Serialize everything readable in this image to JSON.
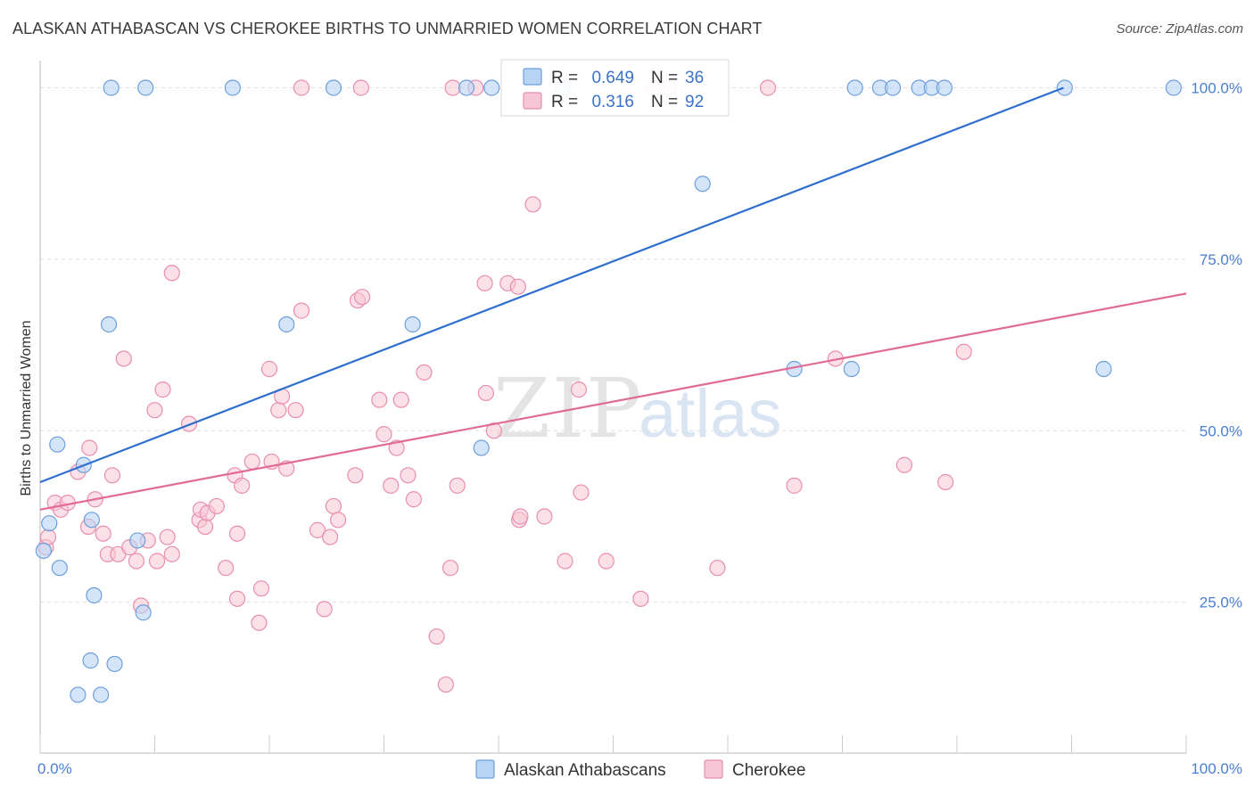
{
  "header": {
    "title": "ALASKAN ATHABASCAN VS CHEROKEE BIRTHS TO UNMARRIED WOMEN CORRELATION CHART",
    "source": "Source: ZipAtlas.com"
  },
  "watermark": {
    "zip": "ZIP",
    "atlas": "atlas"
  },
  "colors": {
    "blue_fill": "#b8d4f5",
    "blue_stroke": "#6e9fdc",
    "blue_line": "#2f6fce",
    "pink_fill": "#f7c6d6",
    "pink_stroke": "#e88fac",
    "pink_line": "#e06b96",
    "grid": "#dddddd",
    "tick_text": "#4a7fd0"
  },
  "chart_data": {
    "type": "scatter",
    "title": "ALASKAN ATHABASCAN VS CHEROKEE BIRTHS TO UNMARRIED WOMEN CORRELATION CHART",
    "ylabel": "Births to Unmarried Women",
    "xlabel": "",
    "xlim": [
      0,
      100
    ],
    "ylim": [
      3,
      105
    ],
    "x_tick_labels": [
      "0.0%",
      "100.0%"
    ],
    "y_ticks": [
      25,
      50,
      75,
      100
    ],
    "y_tick_labels": [
      "25.0%",
      "50.0%",
      "75.0%",
      "100.0%"
    ],
    "grid": "horizontal dashed",
    "legend": {
      "placement": "top-center",
      "entries": [
        {
          "r_label": "R =",
          "r_value": "0.649",
          "n_label": "N =",
          "n_value": "36"
        },
        {
          "r_label": "R =",
          "r_value": "0.316",
          "n_label": "N =",
          "n_value": "92"
        }
      ]
    },
    "bottom_legend": [
      "Alaskan Athabascans",
      "Cherokee"
    ],
    "series": [
      {
        "name": "Alaskan Athabascans",
        "trendline": [
          [
            0,
            42.5
          ],
          [
            89.3,
            100
          ]
        ],
        "points": [
          [
            0.3,
            32.5
          ],
          [
            0.8,
            36.5
          ],
          [
            1.5,
            48
          ],
          [
            1.7,
            30
          ],
          [
            3.8,
            45
          ],
          [
            4.5,
            37
          ],
          [
            4.7,
            26
          ],
          [
            4.4,
            16.5
          ],
          [
            3.3,
            11.5
          ],
          [
            5.3,
            11.5
          ],
          [
            6.5,
            16
          ],
          [
            8.5,
            34
          ],
          [
            9.0,
            23.5
          ],
          [
            6.0,
            65.5
          ],
          [
            21.5,
            65.5
          ],
          [
            32.5,
            65.5
          ],
          [
            38.5,
            47.5
          ],
          [
            57.8,
            86
          ],
          [
            65.8,
            59
          ],
          [
            70.8,
            59
          ],
          [
            92.8,
            59
          ],
          [
            6.2,
            100
          ],
          [
            9.2,
            100
          ],
          [
            16.8,
            100
          ],
          [
            25.6,
            100
          ],
          [
            37.2,
            100
          ],
          [
            39.4,
            100
          ],
          [
            45.6,
            100
          ],
          [
            71.1,
            100
          ],
          [
            73.3,
            100
          ],
          [
            74.4,
            100
          ],
          [
            76.7,
            100
          ],
          [
            77.8,
            100
          ],
          [
            78.9,
            100
          ],
          [
            89.4,
            100
          ],
          [
            98.9,
            100
          ]
        ]
      },
      {
        "name": "Cherokee",
        "trendline": [
          [
            0,
            38.5
          ],
          [
            100,
            70
          ]
        ],
        "points": [
          [
            0.5,
            33
          ],
          [
            0.7,
            34.5
          ],
          [
            1.3,
            39.5
          ],
          [
            1.8,
            38.5
          ],
          [
            2.4,
            39.5
          ],
          [
            3.3,
            44
          ],
          [
            4.2,
            36
          ],
          [
            4.3,
            47.5
          ],
          [
            4.8,
            40
          ],
          [
            5.5,
            35
          ],
          [
            5.9,
            32
          ],
          [
            6.3,
            43.5
          ],
          [
            6.8,
            32
          ],
          [
            7.3,
            60.5
          ],
          [
            7.8,
            33
          ],
          [
            8.4,
            31
          ],
          [
            8.8,
            24.5
          ],
          [
            9.4,
            34
          ],
          [
            10.0,
            53
          ],
          [
            10.2,
            31
          ],
          [
            10.7,
            56
          ],
          [
            11.1,
            34.5
          ],
          [
            11.5,
            32
          ],
          [
            11.5,
            73
          ],
          [
            13.0,
            51
          ],
          [
            13.9,
            37
          ],
          [
            14.0,
            38.5
          ],
          [
            14.4,
            36
          ],
          [
            14.6,
            38
          ],
          [
            15.4,
            39
          ],
          [
            16.2,
            30
          ],
          [
            17.0,
            43.5
          ],
          [
            17.2,
            25.5
          ],
          [
            17.6,
            42
          ],
          [
            18.5,
            45.5
          ],
          [
            19.1,
            22
          ],
          [
            19.3,
            27
          ],
          [
            20.0,
            59
          ],
          [
            20.2,
            45.5
          ],
          [
            20.8,
            53
          ],
          [
            21.1,
            55
          ],
          [
            21.5,
            44.5
          ],
          [
            22.3,
            53
          ],
          [
            22.8,
            67.5
          ],
          [
            24.2,
            35.5
          ],
          [
            24.8,
            24
          ],
          [
            25.3,
            34.5
          ],
          [
            25.6,
            39
          ],
          [
            26.0,
            37
          ],
          [
            27.5,
            43.5
          ],
          [
            27.7,
            69
          ],
          [
            28.1,
            69.5
          ],
          [
            29.6,
            54.5
          ],
          [
            30.0,
            49.5
          ],
          [
            30.6,
            42
          ],
          [
            31.1,
            47.5
          ],
          [
            31.5,
            54.5
          ],
          [
            32.1,
            43.5
          ],
          [
            32.6,
            40
          ],
          [
            33.5,
            58.5
          ],
          [
            34.6,
            20
          ],
          [
            35.4,
            13
          ],
          [
            35.8,
            30
          ],
          [
            36.4,
            42
          ],
          [
            38.0,
            100
          ],
          [
            38.8,
            71.5
          ],
          [
            38.9,
            55.5
          ],
          [
            39.6,
            50
          ],
          [
            40.8,
            71.5
          ],
          [
            41.7,
            71
          ],
          [
            41.8,
            37
          ],
          [
            41.9,
            37.5
          ],
          [
            43.0,
            83
          ],
          [
            44.0,
            37.5
          ],
          [
            45.8,
            31
          ],
          [
            47.0,
            56
          ],
          [
            47.2,
            41
          ],
          [
            49.4,
            31
          ],
          [
            52.4,
            25.5
          ],
          [
            54.8,
            100
          ],
          [
            59.1,
            30
          ],
          [
            63.5,
            100
          ],
          [
            65.8,
            42
          ],
          [
            69.4,
            60.5
          ],
          [
            75.4,
            45
          ],
          [
            79.0,
            42.5
          ],
          [
            80.6,
            61.5
          ],
          [
            28.0,
            100
          ],
          [
            22.8,
            100
          ],
          [
            36.0,
            100
          ],
          [
            53.5,
            100
          ],
          [
            17.2,
            35
          ]
        ]
      }
    ]
  }
}
